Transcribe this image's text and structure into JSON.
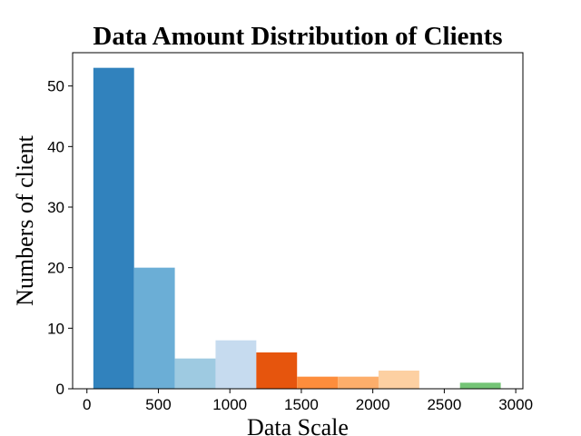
{
  "chart_data": {
    "type": "bar",
    "title": "Data Amount Distribution of Clients",
    "xlabel": "Data Scale",
    "ylabel": "Numbers of client",
    "xlim": [
      -100,
      3050
    ],
    "ylim": [
      0,
      55.5
    ],
    "xticks": [
      0,
      500,
      1000,
      1500,
      2000,
      2500,
      3000
    ],
    "yticks": [
      0,
      10,
      20,
      30,
      40,
      50
    ],
    "grid": false,
    "bins": [
      {
        "start": 45,
        "end": 330,
        "count": 53,
        "color": "#3182bd"
      },
      {
        "start": 330,
        "end": 615,
        "count": 20,
        "color": "#6baed6"
      },
      {
        "start": 615,
        "end": 900,
        "count": 5,
        "color": "#9ecae1"
      },
      {
        "start": 900,
        "end": 1185,
        "count": 8,
        "color": "#c6dbef"
      },
      {
        "start": 1185,
        "end": 1470,
        "count": 6,
        "color": "#e6550d"
      },
      {
        "start": 1470,
        "end": 1755,
        "count": 2,
        "color": "#fd8d3c"
      },
      {
        "start": 1755,
        "end": 2040,
        "count": 2,
        "color": "#fdae6b"
      },
      {
        "start": 2040,
        "end": 2325,
        "count": 3,
        "color": "#fdd0a2"
      },
      {
        "start": 2325,
        "end": 2610,
        "count": 0,
        "color": "#31a354"
      },
      {
        "start": 2610,
        "end": 2895,
        "count": 1,
        "color": "#74c476"
      }
    ]
  }
}
